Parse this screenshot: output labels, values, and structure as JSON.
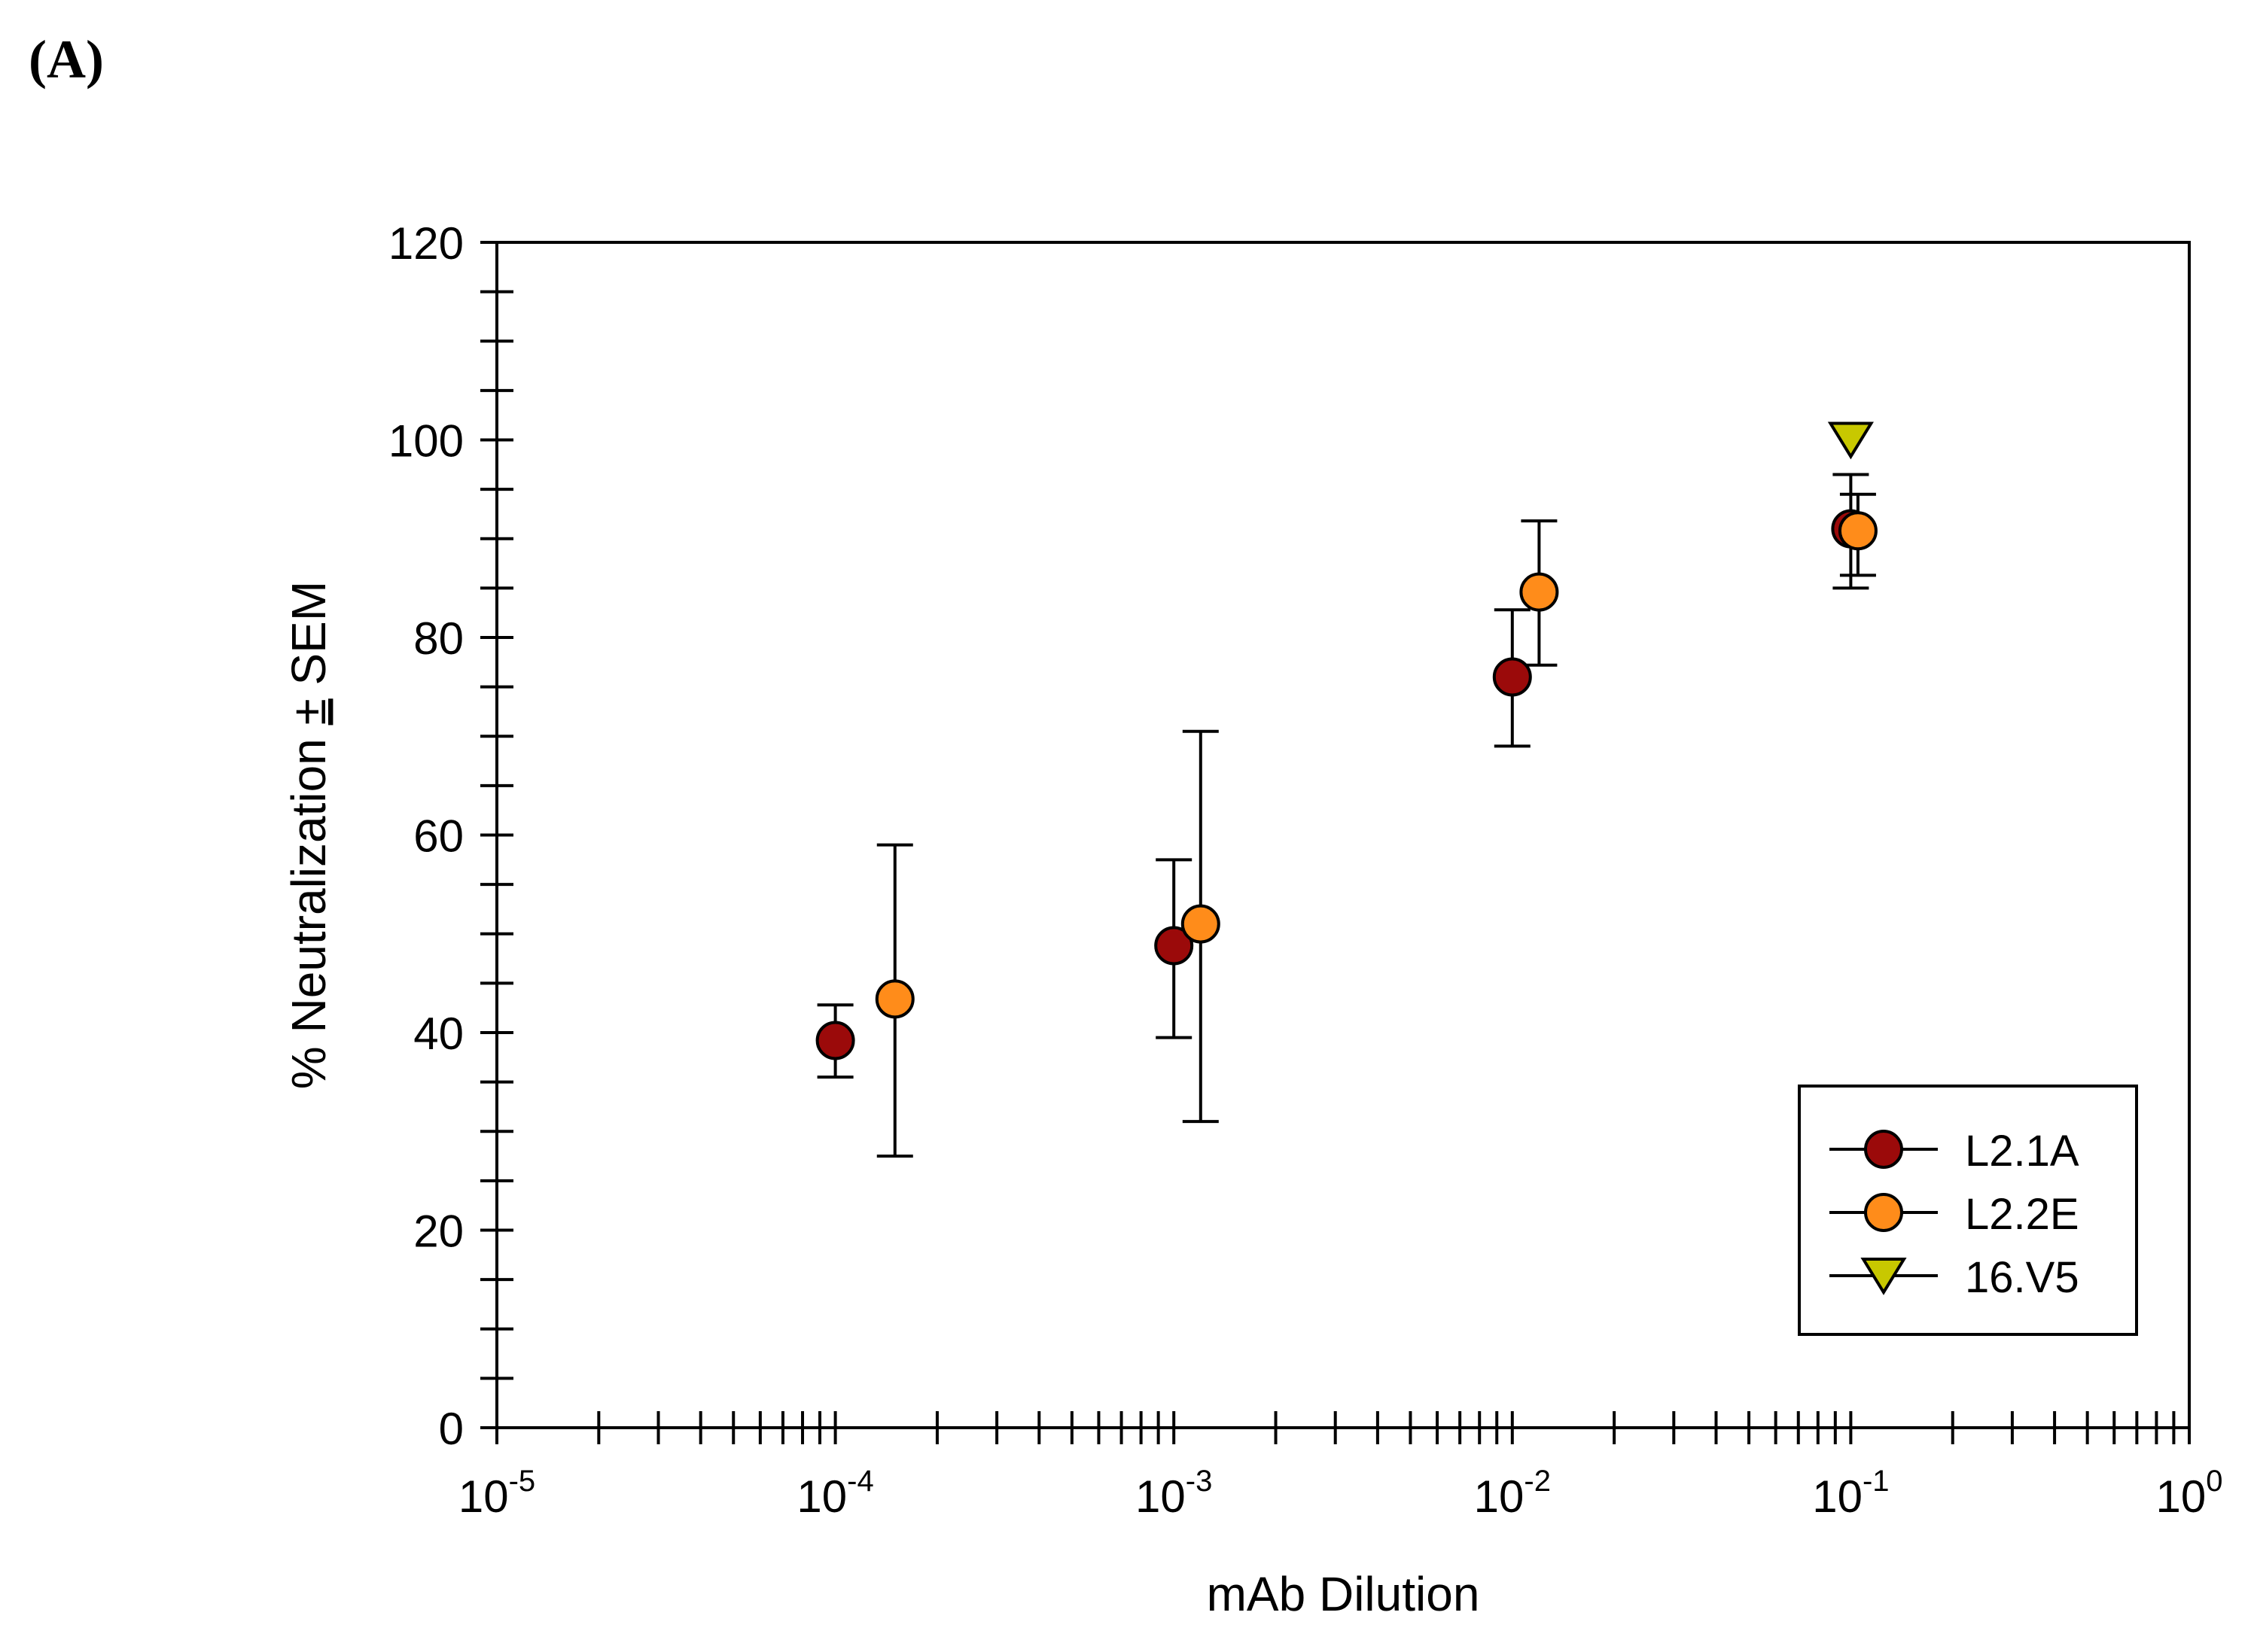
{
  "panel_label": "(A)",
  "chart_data": {
    "type": "scatter",
    "xscale": "log",
    "xlabel": "mAb Dilution",
    "ylabel_prefix": "% Neutralization ",
    "ylabel_pm": "±",
    "ylabel_suffix": " SEM",
    "xlim": [
      1e-05,
      1
    ],
    "ylim": [
      0,
      120
    ],
    "yticks": [
      0,
      20,
      40,
      60,
      80,
      100,
      120
    ],
    "xticks": [
      {
        "value": 1e-05,
        "base": "10",
        "exp": "-5"
      },
      {
        "value": 0.0001,
        "base": "10",
        "exp": "-4"
      },
      {
        "value": 0.001,
        "base": "10",
        "exp": "-3"
      },
      {
        "value": 0.01,
        "base": "10",
        "exp": "-2"
      },
      {
        "value": 0.1,
        "base": "10",
        "exp": "-1"
      },
      {
        "value": 1,
        "base": "10",
        "exp": "0"
      }
    ],
    "legend_position": "bottom-right",
    "series": [
      {
        "name": "L2.1A",
        "marker": "circle",
        "color": "#9b0a0a",
        "points": [
          {
            "x": 0.0001,
            "y": 39.2,
            "yerr_low": 35.5,
            "yerr_high": 42.8
          },
          {
            "x": 0.001,
            "y": 48.8,
            "yerr_low": 39.5,
            "yerr_high": 57.5
          },
          {
            "x": 0.01,
            "y": 76.0,
            "yerr_low": 69.0,
            "yerr_high": 82.8
          },
          {
            "x": 0.1,
            "y": 91.0,
            "yerr_low": 85.0,
            "yerr_high": 96.5
          }
        ]
      },
      {
        "name": "L2.2E",
        "marker": "circle",
        "color": "#ff8c1a",
        "points": [
          {
            "x": 0.00015,
            "y": 43.4,
            "yerr_low": 27.5,
            "yerr_high": 59.0
          },
          {
            "x": 0.0012,
            "y": 51.0,
            "yerr_low": 31.0,
            "yerr_high": 70.5
          },
          {
            "x": 0.012,
            "y": 84.6,
            "yerr_low": 77.2,
            "yerr_high": 91.8
          },
          {
            "x": 0.105,
            "y": 90.8,
            "yerr_low": 86.3,
            "yerr_high": 94.5
          }
        ]
      },
      {
        "name": "16.V5",
        "marker": "triangle-down",
        "color": "#c8c800",
        "points": [
          {
            "x": 0.1,
            "y": 100.0
          }
        ]
      }
    ]
  }
}
